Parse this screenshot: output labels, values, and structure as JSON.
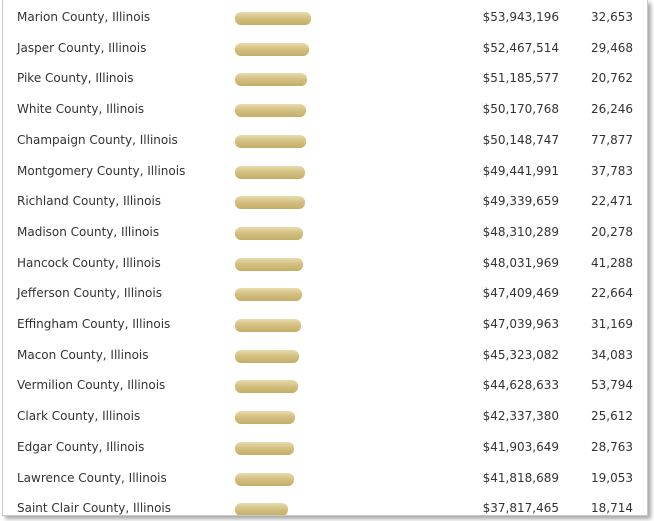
{
  "rows": [
    {
      "name": "Marion County, Illinois",
      "amount": "$53,943,196",
      "count": "32,653",
      "value": 53943196
    },
    {
      "name": "Jasper County, Illinois",
      "amount": "$52,467,514",
      "count": "29,468",
      "value": 52467514
    },
    {
      "name": "Pike County, Illinois",
      "amount": "$51,185,577",
      "count": "20,762",
      "value": 51185577
    },
    {
      "name": "White County, Illinois",
      "amount": "$50,170,768",
      "count": "26,246",
      "value": 50170768
    },
    {
      "name": "Champaign County, Illinois",
      "amount": "$50,148,747",
      "count": "77,877",
      "value": 50148747
    },
    {
      "name": "Montgomery County, Illinois",
      "amount": "$49,441,991",
      "count": "37,783",
      "value": 49441991
    },
    {
      "name": "Richland County, Illinois",
      "amount": "$49,339,659",
      "count": "22,471",
      "value": 49339659
    },
    {
      "name": "Madison County, Illinois",
      "amount": "$48,310,289",
      "count": "20,278",
      "value": 48310289
    },
    {
      "name": "Hancock County, Illinois",
      "amount": "$48,031,969",
      "count": "41,288",
      "value": 48031969
    },
    {
      "name": "Jefferson County, Illinois",
      "amount": "$47,409,469",
      "count": "22,664",
      "value": 47409469
    },
    {
      "name": "Effingham County, Illinois",
      "amount": "$47,039,963",
      "count": "31,169",
      "value": 47039963
    },
    {
      "name": "Macon County, Illinois",
      "amount": "$45,323,082",
      "count": "34,083",
      "value": 45323082
    },
    {
      "name": "Vermilion County, Illinois",
      "amount": "$44,628,633",
      "count": "53,794",
      "value": 44628633
    },
    {
      "name": "Clark County, Illinois",
      "amount": "$42,337,380",
      "count": "25,612",
      "value": 42337380
    },
    {
      "name": "Edgar County, Illinois",
      "amount": "$41,903,649",
      "count": "28,763",
      "value": 41903649
    },
    {
      "name": "Lawrence County, Illinois",
      "amount": "$41,818,689",
      "count": "19,053",
      "value": 41818689
    },
    {
      "name": "Saint Clair County, Illinois",
      "amount": "$37,817,465",
      "count": "18,714",
      "value": 37817465
    }
  ],
  "colors": {
    "bar_light": "#e8dcae",
    "bar_dark": "#c4ad67",
    "text": "#333333"
  }
}
